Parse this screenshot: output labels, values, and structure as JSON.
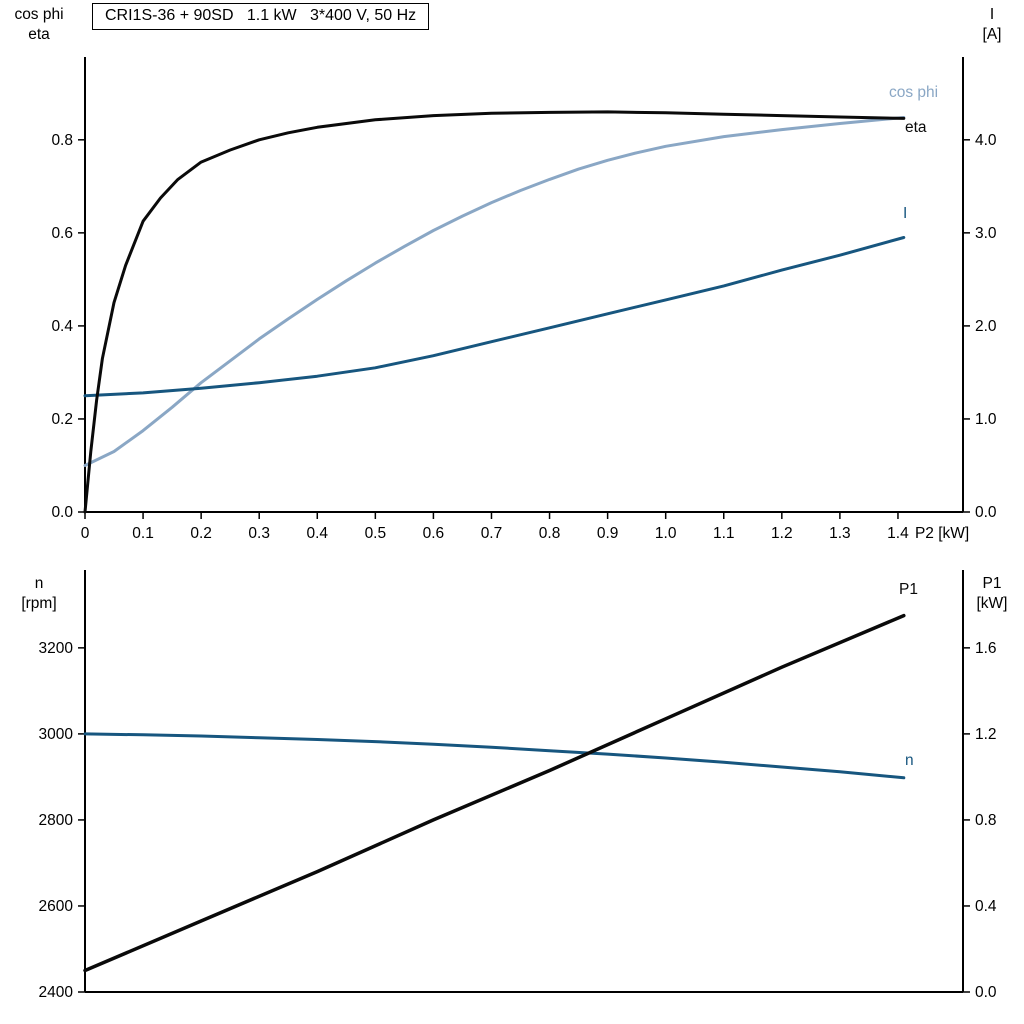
{
  "title_box": {
    "text": "CRI1S-36 + 90SD   1.1 kW   3*400 V, 50 Hz"
  },
  "colors": {
    "black": "#0a0a0a",
    "dark_blue": "#17567f",
    "light_blue": "#8aa7c5",
    "axis": "#000000"
  },
  "chart_data": [
    {
      "type": "line",
      "id": "motor-top",
      "title": "CRI1S-36 + 90SD 1.1 kW 3*400 V, 50 Hz",
      "left_axis_title": [
        "cos phi",
        "eta"
      ],
      "right_axis_title": [
        "I",
        "[A]"
      ],
      "x_axis_title": "P2 [kW]",
      "xlim": [
        0,
        1.512
      ],
      "x_ticks": {
        "values": [
          0,
          0.1,
          0.2,
          0.3,
          0.4,
          0.5,
          0.6,
          0.7,
          0.8,
          0.9,
          1.0,
          1.1,
          1.2,
          1.3,
          1.4
        ],
        "labels": [
          "0",
          "0.1",
          "0.2",
          "0.3",
          "0.4",
          "0.5",
          "0.6",
          "0.7",
          "0.8",
          "0.9",
          "1.0",
          "1.1",
          "1.2",
          "1.3",
          "1.4"
        ]
      },
      "left_axis": {
        "lim": [
          0,
          0.978
        ],
        "tick_values": [
          0,
          0.2,
          0.4,
          0.6,
          0.8
        ],
        "tick_labels": [
          "0.0",
          "0.2",
          "0.4",
          "0.6",
          "0.8"
        ]
      },
      "right_axis": {
        "lim": [
          0,
          4.89
        ],
        "tick_values": [
          0,
          1,
          2,
          3,
          4
        ],
        "tick_labels": [
          "0.0",
          "1.0",
          "2.0",
          "3.0",
          "4.0"
        ]
      },
      "series": [
        {
          "name": "cos phi",
          "axis": "left",
          "color": "#8aa7c5",
          "width": 3,
          "points": [
            [
              0,
              0.1
            ],
            [
              0.05,
              0.13
            ],
            [
              0.1,
              0.175
            ],
            [
              0.15,
              0.225
            ],
            [
              0.2,
              0.278
            ],
            [
              0.25,
              0.325
            ],
            [
              0.3,
              0.372
            ],
            [
              0.35,
              0.415
            ],
            [
              0.4,
              0.457
            ],
            [
              0.45,
              0.497
            ],
            [
              0.5,
              0.535
            ],
            [
              0.55,
              0.571
            ],
            [
              0.6,
              0.605
            ],
            [
              0.65,
              0.636
            ],
            [
              0.7,
              0.665
            ],
            [
              0.75,
              0.691
            ],
            [
              0.8,
              0.715
            ],
            [
              0.85,
              0.737
            ],
            [
              0.9,
              0.756
            ],
            [
              0.95,
              0.772
            ],
            [
              1.0,
              0.786
            ],
            [
              1.1,
              0.807
            ],
            [
              1.2,
              0.822
            ],
            [
              1.3,
              0.835
            ],
            [
              1.41,
              0.848
            ]
          ]
        },
        {
          "name": "I",
          "axis": "right",
          "color": "#17567f",
          "width": 3,
          "points": [
            [
              0,
              1.25
            ],
            [
              0.1,
              1.28
            ],
            [
              0.2,
              1.33
            ],
            [
              0.3,
              1.39
            ],
            [
              0.4,
              1.46
            ],
            [
              0.5,
              1.55
            ],
            [
              0.6,
              1.68
            ],
            [
              0.7,
              1.83
            ],
            [
              0.8,
              1.98
            ],
            [
              0.9,
              2.13
            ],
            [
              1.0,
              2.28
            ],
            [
              1.1,
              2.43
            ],
            [
              1.2,
              2.6
            ],
            [
              1.3,
              2.76
            ],
            [
              1.41,
              2.95
            ]
          ]
        },
        {
          "name": "eta",
          "axis": "left",
          "color": "#0a0a0a",
          "width": 3,
          "points": [
            [
              0,
              0
            ],
            [
              0.01,
              0.13
            ],
            [
              0.02,
              0.24
            ],
            [
              0.03,
              0.33
            ],
            [
              0.05,
              0.45
            ],
            [
              0.07,
              0.53
            ],
            [
              0.1,
              0.625
            ],
            [
              0.13,
              0.675
            ],
            [
              0.16,
              0.715
            ],
            [
              0.2,
              0.752
            ],
            [
              0.25,
              0.778
            ],
            [
              0.3,
              0.8
            ],
            [
              0.35,
              0.815
            ],
            [
              0.4,
              0.827
            ],
            [
              0.5,
              0.843
            ],
            [
              0.6,
              0.852
            ],
            [
              0.7,
              0.857
            ],
            [
              0.8,
              0.859
            ],
            [
              0.9,
              0.86
            ],
            [
              1.0,
              0.858
            ],
            [
              1.1,
              0.855
            ],
            [
              1.2,
              0.852
            ],
            [
              1.3,
              0.849
            ],
            [
              1.41,
              0.846
            ]
          ]
        }
      ]
    },
    {
      "type": "line",
      "id": "motor-bottom",
      "title": "",
      "left_axis_title": [
        "n",
        "[rpm]"
      ],
      "right_axis_title": [
        "P1",
        "[kW]"
      ],
      "x_axis_title": "",
      "xlim": [
        0,
        1.512
      ],
      "x_ticks": {
        "values": [],
        "labels": []
      },
      "left_axis": {
        "lim": [
          2400,
          3381
        ],
        "tick_values": [
          2400,
          2600,
          2800,
          3000,
          3200
        ],
        "tick_labels": [
          "2400",
          "2600",
          "2800",
          "3000",
          "3200"
        ]
      },
      "right_axis": {
        "lim": [
          0,
          1.962
        ],
        "tick_values": [
          0,
          0.4,
          0.8,
          1.2,
          1.6
        ],
        "tick_labels": [
          "0.0",
          "0.4",
          "0.8",
          "1.2",
          "1.6"
        ]
      },
      "series": [
        {
          "name": "n",
          "axis": "left",
          "color": "#17567f",
          "width": 3,
          "points": [
            [
              0,
              3000
            ],
            [
              0.1,
              2998
            ],
            [
              0.2,
              2995
            ],
            [
              0.3,
              2991
            ],
            [
              0.4,
              2987
            ],
            [
              0.5,
              2982
            ],
            [
              0.6,
              2976
            ],
            [
              0.7,
              2969
            ],
            [
              0.8,
              2961
            ],
            [
              0.9,
              2953
            ],
            [
              1.0,
              2944
            ],
            [
              1.1,
              2934
            ],
            [
              1.2,
              2923
            ],
            [
              1.3,
              2912
            ],
            [
              1.41,
              2898
            ]
          ]
        },
        {
          "name": "P1",
          "axis": "right",
          "color": "#0a0a0a",
          "width": 3.5,
          "points": [
            [
              0,
              0.1
            ],
            [
              0.2,
              0.33
            ],
            [
              0.4,
              0.56
            ],
            [
              0.6,
              0.8
            ],
            [
              0.8,
              1.03
            ],
            [
              1.0,
              1.27
            ],
            [
              1.2,
              1.51
            ],
            [
              1.41,
              1.75
            ]
          ]
        }
      ]
    }
  ]
}
